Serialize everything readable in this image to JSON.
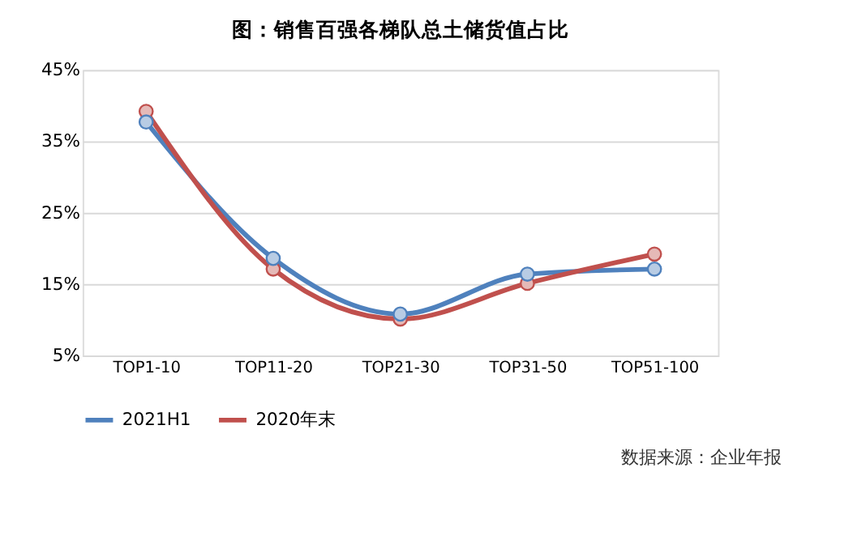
{
  "chart_data": {
    "type": "line",
    "title": "图：销售百强各梯队总土储货值占比",
    "categories": [
      "TOP1-10",
      "TOP11-20",
      "TOP21-30",
      "TOP31-50",
      "TOP51-100"
    ],
    "series": [
      {
        "name": "2021H1",
        "color": "#4f81bd",
        "values": [
          37.7,
          18.6,
          10.8,
          16.4,
          17.1
        ]
      },
      {
        "name": "2020年末",
        "color": "#c0504d",
        "values": [
          39.2,
          17.1,
          10.1,
          15.1,
          19.2
        ]
      }
    ],
    "ylim": [
      5,
      45
    ],
    "yticks": [
      {
        "value": 5,
        "label": "5%"
      },
      {
        "value": 15,
        "label": "15%"
      },
      {
        "value": 25,
        "label": "25%"
      },
      {
        "value": 35,
        "label": "35%"
      },
      {
        "value": 45,
        "label": "45%"
      }
    ],
    "grid": "y",
    "legend": "bottom",
    "marker": "circle",
    "line_style": "solid",
    "annotations": [
      "数据来源：企业年报"
    ]
  }
}
